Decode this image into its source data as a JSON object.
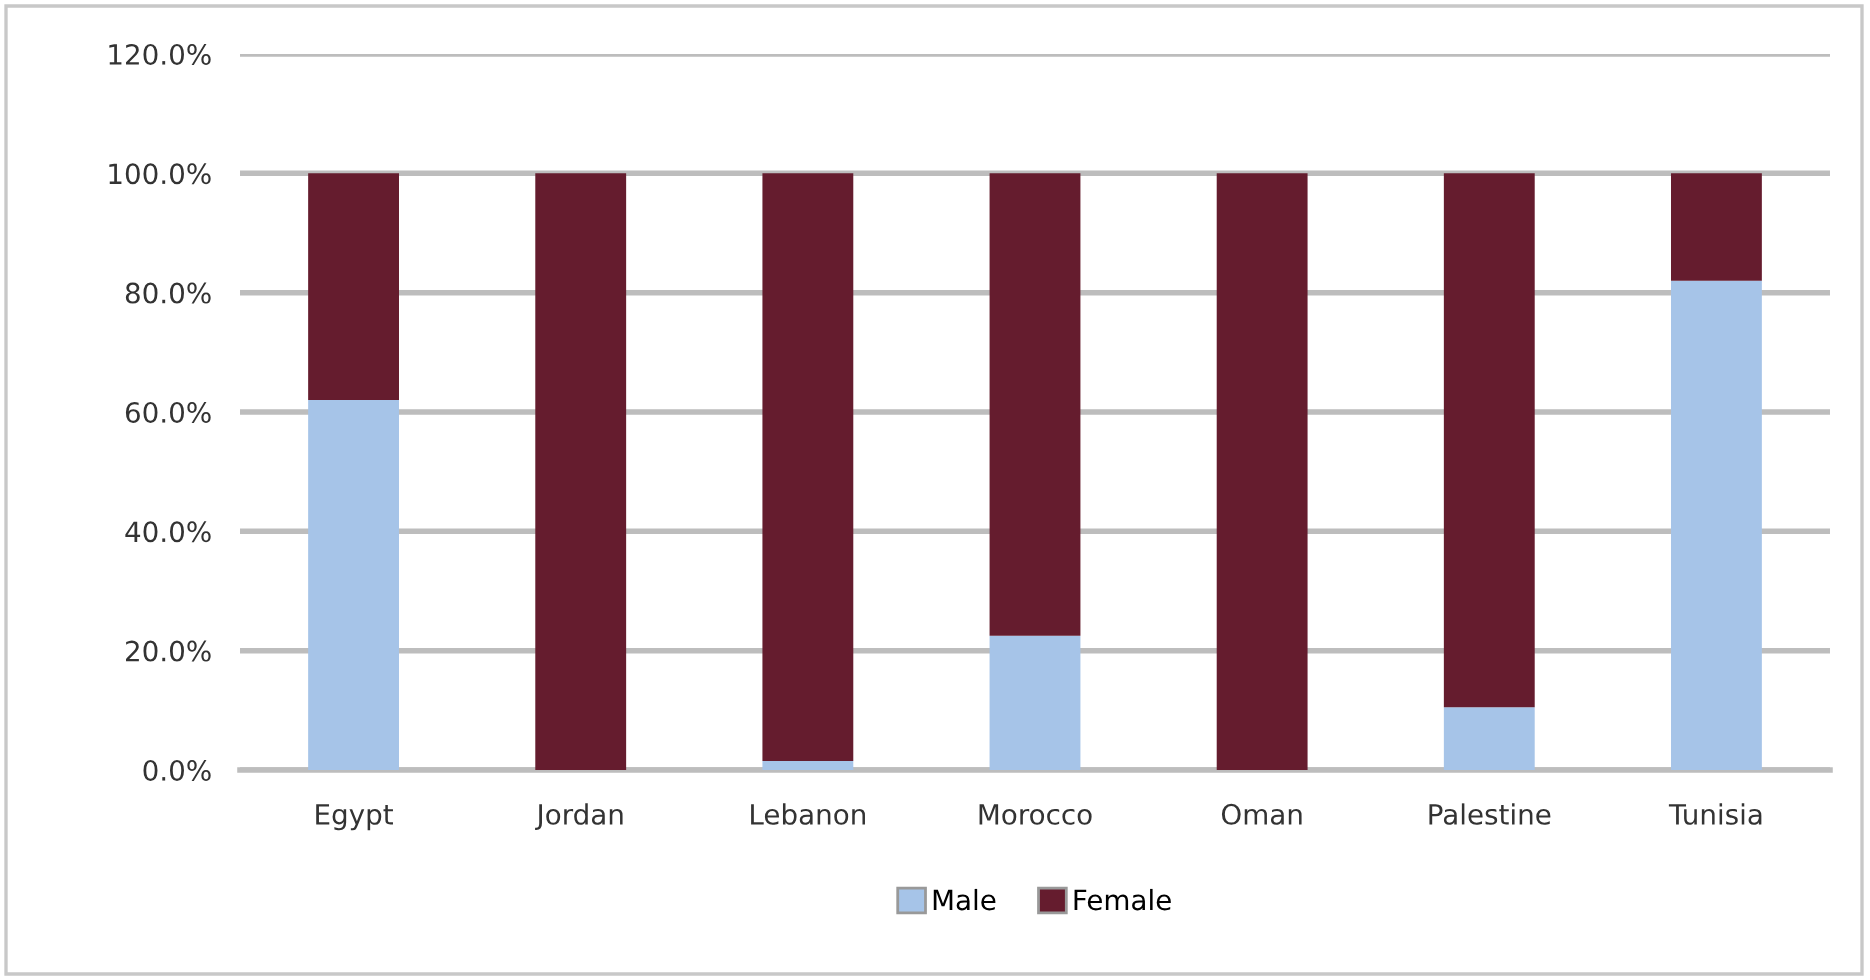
{
  "chart_data": {
    "type": "bar",
    "stacked": true,
    "categories": [
      "Egypt",
      "Jordan",
      "Lebanon",
      "Morocco",
      "Oman",
      "Palestine",
      "Tunisia"
    ],
    "series": [
      {
        "name": "Male",
        "color": "#a6c4e8",
        "values": [
          62,
          null,
          1.5,
          22.5,
          0,
          10.5,
          82
        ]
      },
      {
        "name": "Female",
        "color": "#651c2e",
        "values": [
          38,
          100,
          98.5,
          77.5,
          100,
          89.5,
          18
        ]
      }
    ],
    "ylim": [
      0,
      120
    ],
    "yticks": [
      {
        "value": 0,
        "label": "0.0%"
      },
      {
        "value": 20,
        "label": "20.0%"
      },
      {
        "value": 40,
        "label": "40.0%"
      },
      {
        "value": 60,
        "label": "60.0%"
      },
      {
        "value": 80,
        "label": "80.0%"
      },
      {
        "value": 100,
        "label": "100.0%"
      },
      {
        "value": 120,
        "label": "120.0%"
      }
    ],
    "grid": "y",
    "legend": "bottom"
  }
}
